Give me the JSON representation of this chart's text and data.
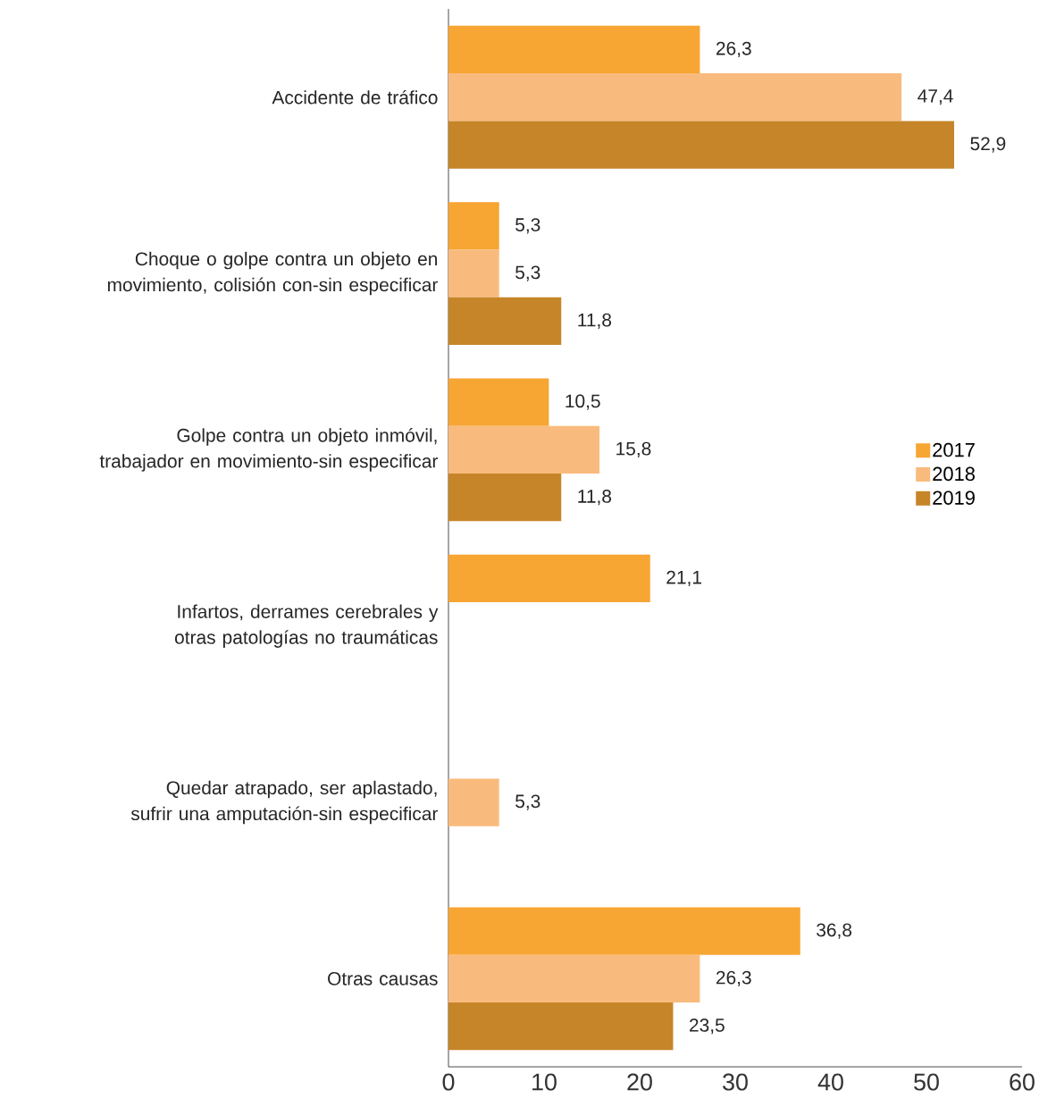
{
  "chart_data": {
    "type": "bar",
    "orientation": "horizontal",
    "categories": [
      "Accidente de tráfico",
      "Choque o golpe contra un objeto en movimiento, colisión con-sin especificar",
      "Golpe contra un objeto inmóvil, trabajador en movimiento-sin especificar",
      "Infartos, derrames cerebrales y otras patologías no traumáticas",
      "Quedar atrapado, ser aplastado, sufrir una amputación-sin especificar",
      "Otras causas"
    ],
    "series": [
      {
        "name": "2017",
        "color": "#f7a533",
        "values": [
          26.3,
          5.3,
          10.5,
          21.1,
          null,
          36.8
        ],
        "value_labels": [
          "26,3",
          "5,3",
          "10,5",
          "21,1",
          null,
          "36,8"
        ]
      },
      {
        "name": "2018",
        "color": "#f9bb7d",
        "values": [
          47.4,
          5.3,
          15.8,
          null,
          5.3,
          26.3
        ],
        "value_labels": [
          "47,4",
          "5,3",
          "15,8",
          null,
          "5,3",
          "26,3"
        ]
      },
      {
        "name": "2019",
        "color": "#c68528",
        "values": [
          52.9,
          11.8,
          11.8,
          null,
          null,
          23.5
        ],
        "value_labels": [
          "52,9",
          "11,8",
          "11,8",
          null,
          null,
          "23,5"
        ]
      }
    ],
    "xlim": [
      0,
      60
    ],
    "xticks": [
      0,
      10,
      20,
      30,
      40,
      50,
      60
    ],
    "legend": "right",
    "grid": false
  }
}
